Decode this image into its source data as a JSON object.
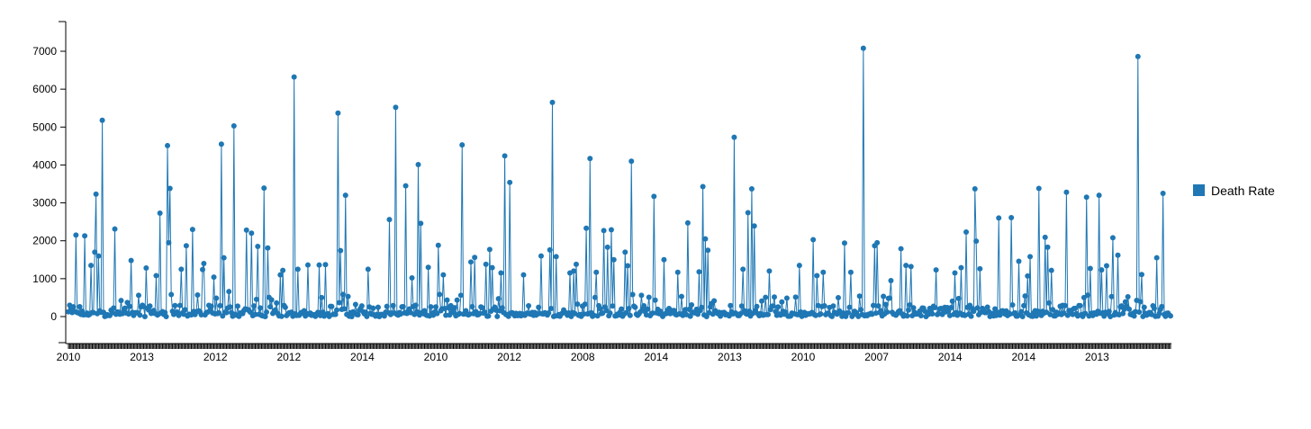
{
  "chart_data": {
    "type": "line",
    "title": "",
    "xlabel": "",
    "ylabel": "",
    "ylim": [
      -700,
      7700
    ],
    "y_ticks": [
      0,
      1000,
      2000,
      3000,
      4000,
      5000,
      6000,
      7000
    ],
    "x_tick_labels": [
      "2010",
      "2013",
      "2012",
      "2012",
      "2014",
      "2010",
      "2012",
      "2008",
      "2014",
      "2013",
      "2010",
      "2007",
      "2014",
      "2014",
      "2013"
    ],
    "legend": {
      "position": "right",
      "items": [
        {
          "label": "Death Rate",
          "color": "#1f77b4"
        }
      ]
    },
    "grid": false,
    "point_count": 880,
    "peaks": [
      {
        "i": 5,
        "v": 2150
      },
      {
        "i": 11,
        "v": 2130
      },
      {
        "i": 16,
        "v": 1350
      },
      {
        "i": 18,
        "v": 1700
      },
      {
        "i": 19,
        "v": 3230
      },
      {
        "i": 21,
        "v": 1600
      },
      {
        "i": 24,
        "v": 5180
      },
      {
        "i": 32,
        "v": 2310
      },
      {
        "i": 44,
        "v": 1480
      },
      {
        "i": 49,
        "v": 560
      },
      {
        "i": 54,
        "v": 1280
      },
      {
        "i": 61,
        "v": 1080
      },
      {
        "i": 64,
        "v": 2730
      },
      {
        "i": 69,
        "v": 4510
      },
      {
        "i": 70,
        "v": 1950
      },
      {
        "i": 71,
        "v": 3380
      },
      {
        "i": 72,
        "v": 580
      },
      {
        "i": 79,
        "v": 1250
      },
      {
        "i": 82,
        "v": 1870
      },
      {
        "i": 87,
        "v": 2300
      },
      {
        "i": 94,
        "v": 1240
      },
      {
        "i": 95,
        "v": 1400
      },
      {
        "i": 102,
        "v": 1040
      },
      {
        "i": 107,
        "v": 4550
      },
      {
        "i": 109,
        "v": 1550
      },
      {
        "i": 112,
        "v": 660
      },
      {
        "i": 116,
        "v": 5030
      },
      {
        "i": 124,
        "v": 2280
      },
      {
        "i": 128,
        "v": 2200
      },
      {
        "i": 132,
        "v": 1850
      },
      {
        "i": 137,
        "v": 3390
      },
      {
        "i": 139,
        "v": 1810
      },
      {
        "i": 148,
        "v": 1100
      },
      {
        "i": 150,
        "v": 1220
      },
      {
        "i": 158,
        "v": 6320
      },
      {
        "i": 160,
        "v": 1250
      },
      {
        "i": 167,
        "v": 1360
      },
      {
        "i": 175,
        "v": 1360
      },
      {
        "i": 180,
        "v": 1370
      },
      {
        "i": 188,
        "v": 5370
      },
      {
        "i": 190,
        "v": 1740
      },
      {
        "i": 194,
        "v": 3200
      },
      {
        "i": 195,
        "v": 530
      },
      {
        "i": 209,
        "v": 1250
      },
      {
        "i": 224,
        "v": 2560
      },
      {
        "i": 229,
        "v": 5520
      },
      {
        "i": 236,
        "v": 3450
      },
      {
        "i": 240,
        "v": 1020
      },
      {
        "i": 244,
        "v": 4010
      },
      {
        "i": 246,
        "v": 2460
      },
      {
        "i": 251,
        "v": 1300
      },
      {
        "i": 258,
        "v": 1880
      },
      {
        "i": 262,
        "v": 1100
      },
      {
        "i": 275,
        "v": 4530
      },
      {
        "i": 281,
        "v": 1440
      },
      {
        "i": 284,
        "v": 1560
      },
      {
        "i": 292,
        "v": 1380
      },
      {
        "i": 294,
        "v": 1770
      },
      {
        "i": 296,
        "v": 1290
      },
      {
        "i": 302,
        "v": 1150
      },
      {
        "i": 305,
        "v": 4240
      },
      {
        "i": 308,
        "v": 3540
      },
      {
        "i": 318,
        "v": 1100
      },
      {
        "i": 330,
        "v": 1600
      },
      {
        "i": 336,
        "v": 1760
      },
      {
        "i": 338,
        "v": 5650
      },
      {
        "i": 341,
        "v": 1580
      },
      {
        "i": 350,
        "v": 1150
      },
      {
        "i": 353,
        "v": 1200
      },
      {
        "i": 355,
        "v": 1380
      },
      {
        "i": 362,
        "v": 2330
      },
      {
        "i": 364,
        "v": 4170
      },
      {
        "i": 369,
        "v": 1170
      },
      {
        "i": 374,
        "v": 2270
      },
      {
        "i": 377,
        "v": 1830
      },
      {
        "i": 379,
        "v": 2290
      },
      {
        "i": 381,
        "v": 1500
      },
      {
        "i": 389,
        "v": 1700
      },
      {
        "i": 391,
        "v": 1340
      },
      {
        "i": 393,
        "v": 4100
      },
      {
        "i": 400,
        "v": 560
      },
      {
        "i": 409,
        "v": 3170
      },
      {
        "i": 416,
        "v": 1500
      },
      {
        "i": 426,
        "v": 1170
      },
      {
        "i": 433,
        "v": 2470
      },
      {
        "i": 441,
        "v": 1180
      },
      {
        "i": 443,
        "v": 3430
      },
      {
        "i": 445,
        "v": 2050
      },
      {
        "i": 447,
        "v": 1750
      },
      {
        "i": 465,
        "v": 4730
      },
      {
        "i": 471,
        "v": 1250
      },
      {
        "i": 475,
        "v": 2740
      },
      {
        "i": 477,
        "v": 3370
      },
      {
        "i": 479,
        "v": 2390
      },
      {
        "i": 490,
        "v": 1200
      },
      {
        "i": 511,
        "v": 1350
      },
      {
        "i": 520,
        "v": 2030
      },
      {
        "i": 523,
        "v": 1080
      },
      {
        "i": 527,
        "v": 1170
      },
      {
        "i": 542,
        "v": 1940
      },
      {
        "i": 547,
        "v": 1170
      },
      {
        "i": 555,
        "v": 7080
      },
      {
        "i": 563,
        "v": 1870
      },
      {
        "i": 565,
        "v": 1950
      },
      {
        "i": 575,
        "v": 950
      },
      {
        "i": 582,
        "v": 1790
      },
      {
        "i": 585,
        "v": 1350
      },
      {
        "i": 589,
        "v": 1320
      },
      {
        "i": 606,
        "v": 1230
      },
      {
        "i": 619,
        "v": 1150
      },
      {
        "i": 624,
        "v": 1290
      },
      {
        "i": 627,
        "v": 2230
      },
      {
        "i": 633,
        "v": 3370
      },
      {
        "i": 634,
        "v": 1990
      },
      {
        "i": 637,
        "v": 1260
      },
      {
        "i": 650,
        "v": 2600
      },
      {
        "i": 659,
        "v": 2610
      },
      {
        "i": 664,
        "v": 1460
      },
      {
        "i": 670,
        "v": 1070
      },
      {
        "i": 672,
        "v": 1580
      },
      {
        "i": 678,
        "v": 3380
      },
      {
        "i": 682,
        "v": 2090
      },
      {
        "i": 684,
        "v": 1830
      },
      {
        "i": 687,
        "v": 1220
      },
      {
        "i": 697,
        "v": 3280
      },
      {
        "i": 711,
        "v": 3150
      },
      {
        "i": 714,
        "v": 1270
      },
      {
        "i": 720,
        "v": 3200
      },
      {
        "i": 722,
        "v": 1230
      },
      {
        "i": 725,
        "v": 1340
      },
      {
        "i": 730,
        "v": 2080
      },
      {
        "i": 733,
        "v": 1620
      },
      {
        "i": 747,
        "v": 6860
      },
      {
        "i": 750,
        "v": 1110
      },
      {
        "i": 760,
        "v": 1550
      },
      {
        "i": 765,
        "v": 3250
      }
    ]
  }
}
